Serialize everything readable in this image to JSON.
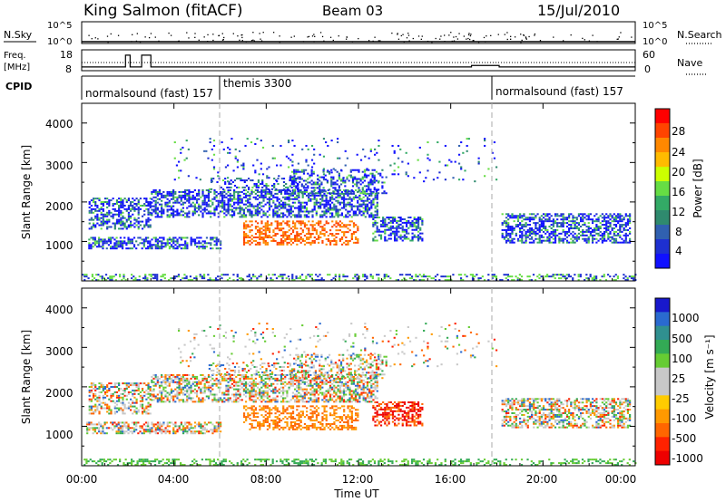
{
  "header": {
    "station": "King Salmon (fitACF)",
    "beam": "Beam 03",
    "date": "15/Jul/2010"
  },
  "chart_data": [
    {
      "type": "line",
      "name": "noise-panel",
      "labels": {
        "left": "N.Sky",
        "right": "N.Search"
      },
      "y_ticks": [
        "10^5",
        "10^0"
      ],
      "scale": "log"
    },
    {
      "type": "line",
      "name": "freq-panel",
      "labels": {
        "left_top": "Freq.",
        "left_unit": "[MHz]",
        "right": "Nave"
      },
      "left_ticks": [
        18,
        8
      ],
      "right_ticks": [
        60,
        0
      ],
      "freq_series_x_hours": [
        0,
        1.9,
        1.9,
        2.1,
        2.1,
        2.6,
        2.6,
        3.0,
        3.0,
        16.9,
        16.9,
        18.1,
        18.1,
        24
      ],
      "freq_series_mhz": [
        10.3,
        10.3,
        17.5,
        17.5,
        10.3,
        10.3,
        17.5,
        17.5,
        10.3,
        10.3,
        11.2,
        11.2,
        10.3,
        10.3
      ]
    },
    {
      "type": "table",
      "name": "cpid-strip",
      "label": "CPID",
      "segments": [
        {
          "name": "normalsound (fast) 157",
          "start_hour": 0,
          "end_hour": 6
        },
        {
          "name": "themis 3300",
          "start_hour": 6,
          "end_hour": 18
        },
        {
          "name": "normalsound (fast) 157",
          "start_hour": 18,
          "end_hour": 24
        }
      ]
    },
    {
      "type": "heatmap",
      "name": "power",
      "ylabel": "Slant Range [km]",
      "y_ticks": [
        1000,
        2000,
        3000,
        4000
      ],
      "ylim": [
        0,
        4500
      ],
      "xlim_hours": [
        0,
        24
      ],
      "colorbar_label": "Power [dB]",
      "colorbar_ticks": [
        28,
        24,
        20,
        16,
        12,
        8,
        4
      ],
      "colorbar_colors": [
        "#ff0000",
        "#ff4400",
        "#ff8800",
        "#ffbb00",
        "#ccff00",
        "#66dd44",
        "#33aa66",
        "#2f8a6e",
        "#3060b0",
        "#1e30d0",
        "#1010ff"
      ]
    },
    {
      "type": "heatmap",
      "name": "velocity",
      "ylabel": "Slant Range [km]",
      "y_ticks": [
        1000,
        2000,
        3000,
        4000
      ],
      "ylim": [
        0,
        4500
      ],
      "xlim_hours": [
        0,
        24
      ],
      "colorbar_label": "Velocity [m s⁻¹]",
      "colorbar_ticks": [
        1000,
        500,
        100,
        25,
        -25,
        -100,
        -500,
        -1000
      ],
      "colorbar_colors": [
        "#1818cc",
        "#2a6ad0",
        "#309090",
        "#33aa55",
        "#66cc33",
        "#c8c8c8",
        "#c8c8c8",
        "#ffcc00",
        "#ff9900",
        "#ff6600",
        "#ff2200",
        "#ee0000"
      ]
    }
  ],
  "x_axis": {
    "label": "Time UT",
    "ticks": [
      "00:00",
      "04:00",
      "08:00",
      "12:00",
      "16:00",
      "20:00",
      "00:00"
    ]
  }
}
